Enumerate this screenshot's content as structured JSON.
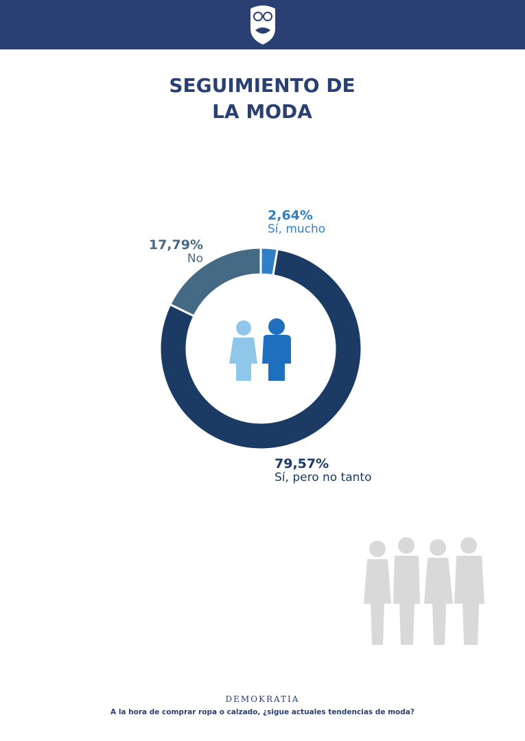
{
  "chart_data": {
    "type": "donut",
    "title": "SEGUIMIENTO DE LA MODA",
    "categories": [
      "Sí, mucho",
      "Sí, pero no tanto",
      "No"
    ],
    "values": [
      2.64,
      79.57,
      17.79
    ],
    "value_labels": [
      "2,64%",
      "79,57%",
      "17,79%"
    ],
    "colors": [
      "#2f7fc6",
      "#1b3a64",
      "#456a85"
    ],
    "brand": "DEMOKRATIA",
    "question": "A la hora de comprar ropa o calzado, ¿sigue actuales tendencias de moda?"
  }
}
